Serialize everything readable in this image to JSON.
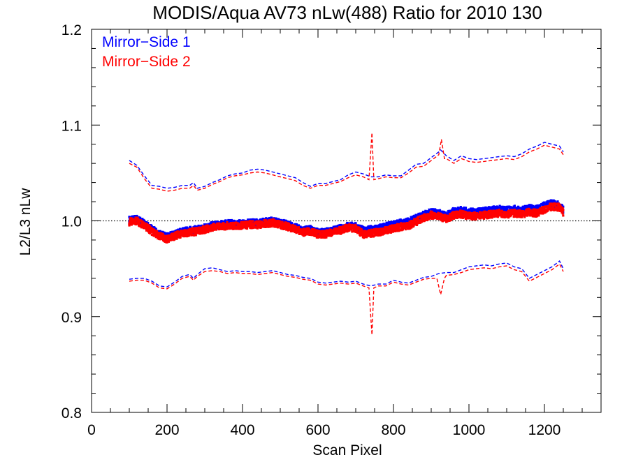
{
  "chart_data": {
    "type": "scatter",
    "title": "MODIS/Aqua AV73 nLw(488) Ratio for 2010 130",
    "xlabel": "Scan Pixel",
    "ylabel": "L2/L3 nLw",
    "xlim": [
      0,
      1350
    ],
    "ylim": [
      0.8,
      1.2
    ],
    "x_ticks": [
      0,
      200,
      400,
      600,
      800,
      1000,
      1200
    ],
    "x_tick_labels": [
      "0",
      "200",
      "400",
      "600",
      "800",
      "1000",
      "1200"
    ],
    "y_ticks": [
      0.8,
      0.9,
      1.0,
      1.1,
      1.2
    ],
    "y_tick_labels": [
      "0.8",
      "0.9",
      "1.0",
      "1.1",
      "1.2"
    ],
    "reference_line": 1.0,
    "legend_position": "top-left",
    "series": [
      {
        "name": "Mirror−Side 1",
        "color": "#0000ff",
        "mean": {
          "x": [
            100,
            120,
            140,
            160,
            180,
            200,
            220,
            240,
            260,
            280,
            300,
            320,
            340,
            360,
            380,
            400,
            420,
            440,
            460,
            480,
            500,
            520,
            540,
            560,
            580,
            600,
            620,
            640,
            660,
            680,
            700,
            720,
            740,
            760,
            780,
            800,
            820,
            840,
            860,
            880,
            900,
            920,
            940,
            960,
            980,
            1000,
            1020,
            1040,
            1060,
            1080,
            1100,
            1120,
            1140,
            1160,
            1180,
            1200,
            1220,
            1240,
            1250
          ],
          "y": [
            1.001,
            1.002,
            0.997,
            0.991,
            0.986,
            0.983,
            0.986,
            0.989,
            0.99,
            0.991,
            0.993,
            0.995,
            0.996,
            0.997,
            0.997,
            0.997,
            0.998,
            0.998,
            0.999,
            1.0,
            0.998,
            0.996,
            0.993,
            0.99,
            0.991,
            0.988,
            0.988,
            0.99,
            0.992,
            0.995,
            0.994,
            0.99,
            0.991,
            0.992,
            0.994,
            0.996,
            0.998,
            0.999,
            1.003,
            1.006,
            1.009,
            1.008,
            1.005,
            1.01,
            1.011,
            1.009,
            1.009,
            1.01,
            1.011,
            1.012,
            1.011,
            1.012,
            1.011,
            1.013,
            1.012,
            1.016,
            1.018,
            1.016,
            1.011
          ]
        },
        "upper": {
          "x": [
            100,
            120,
            140,
            160,
            180,
            200,
            220,
            240,
            260,
            270,
            280,
            300,
            320,
            340,
            360,
            380,
            400,
            420,
            440,
            460,
            480,
            500,
            520,
            540,
            560,
            580,
            600,
            620,
            640,
            660,
            680,
            700,
            720,
            740,
            760,
            780,
            800,
            820,
            840,
            860,
            880,
            900,
            920,
            925,
            940,
            960,
            980,
            1000,
            1020,
            1040,
            1060,
            1080,
            1100,
            1120,
            1140,
            1160,
            1180,
            1200,
            1220,
            1240,
            1250
          ],
          "y": [
            1.063,
            1.058,
            1.047,
            1.037,
            1.036,
            1.034,
            1.035,
            1.037,
            1.037,
            1.04,
            1.034,
            1.036,
            1.04,
            1.043,
            1.047,
            1.049,
            1.05,
            1.053,
            1.054,
            1.053,
            1.051,
            1.049,
            1.047,
            1.045,
            1.04,
            1.036,
            1.039,
            1.039,
            1.041,
            1.043,
            1.048,
            1.051,
            1.049,
            1.046,
            1.046,
            1.048,
            1.047,
            1.047,
            1.053,
            1.059,
            1.06,
            1.066,
            1.072,
            1.074,
            1.068,
            1.063,
            1.068,
            1.065,
            1.064,
            1.065,
            1.066,
            1.067,
            1.068,
            1.067,
            1.07,
            1.075,
            1.078,
            1.082,
            1.08,
            1.078,
            1.072
          ]
        },
        "lower": {
          "x": [
            100,
            120,
            140,
            160,
            180,
            200,
            220,
            240,
            260,
            270,
            280,
            300,
            320,
            340,
            360,
            380,
            400,
            420,
            440,
            460,
            480,
            500,
            520,
            540,
            560,
            580,
            600,
            620,
            640,
            660,
            680,
            700,
            720,
            740,
            760,
            780,
            800,
            820,
            840,
            860,
            880,
            900,
            920,
            940,
            960,
            980,
            1000,
            1020,
            1040,
            1060,
            1080,
            1100,
            1120,
            1140,
            1160,
            1180,
            1200,
            1220,
            1240,
            1250
          ],
          "y": [
            0.939,
            0.94,
            0.94,
            0.937,
            0.932,
            0.931,
            0.936,
            0.942,
            0.944,
            0.94,
            0.944,
            0.95,
            0.951,
            0.949,
            0.947,
            0.948,
            0.947,
            0.947,
            0.946,
            0.947,
            0.948,
            0.946,
            0.944,
            0.943,
            0.941,
            0.94,
            0.936,
            0.935,
            0.936,
            0.937,
            0.936,
            0.937,
            0.934,
            0.932,
            0.934,
            0.934,
            0.938,
            0.936,
            0.935,
            0.938,
            0.941,
            0.942,
            0.945,
            0.946,
            0.946,
            0.949,
            0.952,
            0.953,
            0.954,
            0.953,
            0.955,
            0.956,
            0.952,
            0.95,
            0.94,
            0.944,
            0.948,
            0.952,
            0.958,
            0.95
          ]
        }
      },
      {
        "name": "Mirror−Side 2",
        "color": "#ff0000",
        "mean": {
          "x": [
            100,
            120,
            140,
            160,
            180,
            200,
            220,
            240,
            260,
            280,
            300,
            320,
            340,
            360,
            380,
            400,
            420,
            440,
            460,
            480,
            500,
            520,
            540,
            560,
            580,
            600,
            620,
            640,
            660,
            680,
            700,
            720,
            740,
            760,
            780,
            800,
            820,
            840,
            860,
            880,
            900,
            920,
            940,
            960,
            980,
            1000,
            1020,
            1040,
            1060,
            1080,
            1100,
            1120,
            1140,
            1160,
            1180,
            1200,
            1220,
            1240,
            1250
          ],
          "y": [
            0.999,
            1.0,
            0.995,
            0.989,
            0.984,
            0.981,
            0.984,
            0.987,
            0.988,
            0.989,
            0.991,
            0.993,
            0.994,
            0.995,
            0.995,
            0.995,
            0.996,
            0.996,
            0.997,
            0.998,
            0.996,
            0.994,
            0.991,
            0.988,
            0.989,
            0.986,
            0.986,
            0.988,
            0.99,
            0.993,
            0.992,
            0.986,
            0.987,
            0.988,
            0.99,
            0.992,
            0.994,
            0.995,
            0.999,
            1.003,
            1.006,
            1.005,
            1.002,
            1.006,
            1.007,
            1.005,
            1.005,
            1.006,
            1.007,
            1.008,
            1.007,
            1.008,
            1.007,
            1.009,
            1.008,
            1.012,
            1.015,
            1.014,
            1.009
          ]
        },
        "upper": {
          "x": [
            100,
            120,
            140,
            160,
            180,
            200,
            220,
            240,
            260,
            270,
            280,
            300,
            320,
            340,
            360,
            380,
            400,
            420,
            440,
            460,
            480,
            500,
            520,
            540,
            560,
            580,
            600,
            620,
            640,
            660,
            680,
            700,
            720,
            735,
            743,
            748,
            760,
            780,
            800,
            820,
            840,
            860,
            880,
            900,
            920,
            927,
            935,
            940,
            960,
            980,
            1000,
            1020,
            1040,
            1060,
            1080,
            1100,
            1120,
            1140,
            1160,
            1180,
            1200,
            1220,
            1240,
            1250
          ],
          "y": [
            1.06,
            1.056,
            1.044,
            1.034,
            1.033,
            1.031,
            1.032,
            1.034,
            1.034,
            1.037,
            1.032,
            1.034,
            1.038,
            1.041,
            1.045,
            1.047,
            1.048,
            1.05,
            1.051,
            1.05,
            1.048,
            1.046,
            1.044,
            1.042,
            1.037,
            1.034,
            1.037,
            1.037,
            1.039,
            1.041,
            1.045,
            1.048,
            1.046,
            1.043,
            1.092,
            1.043,
            1.044,
            1.046,
            1.045,
            1.045,
            1.05,
            1.056,
            1.057,
            1.063,
            1.069,
            1.085,
            1.065,
            1.065,
            1.06,
            1.065,
            1.062,
            1.061,
            1.062,
            1.063,
            1.064,
            1.065,
            1.064,
            1.067,
            1.072,
            1.075,
            1.079,
            1.077,
            1.075,
            1.069
          ]
        },
        "lower": {
          "x": [
            100,
            120,
            140,
            160,
            180,
            200,
            220,
            240,
            260,
            270,
            280,
            300,
            320,
            340,
            360,
            380,
            400,
            420,
            440,
            460,
            480,
            500,
            520,
            540,
            560,
            580,
            600,
            620,
            640,
            660,
            680,
            700,
            720,
            735,
            743,
            748,
            760,
            780,
            800,
            820,
            840,
            860,
            880,
            900,
            915,
            925,
            935,
            940,
            960,
            980,
            1000,
            1020,
            1040,
            1060,
            1080,
            1100,
            1120,
            1140,
            1160,
            1180,
            1200,
            1220,
            1240,
            1250
          ],
          "y": [
            0.937,
            0.938,
            0.938,
            0.935,
            0.93,
            0.929,
            0.934,
            0.94,
            0.942,
            0.938,
            0.942,
            0.947,
            0.948,
            0.947,
            0.945,
            0.946,
            0.945,
            0.945,
            0.944,
            0.945,
            0.946,
            0.944,
            0.942,
            0.941,
            0.939,
            0.938,
            0.934,
            0.933,
            0.934,
            0.935,
            0.934,
            0.935,
            0.932,
            0.93,
            0.881,
            0.93,
            0.932,
            0.932,
            0.936,
            0.934,
            0.933,
            0.936,
            0.939,
            0.94,
            0.94,
            0.923,
            0.94,
            0.943,
            0.944,
            0.946,
            0.949,
            0.95,
            0.951,
            0.95,
            0.952,
            0.953,
            0.949,
            0.947,
            0.937,
            0.941,
            0.945,
            0.949,
            0.955,
            0.947
          ]
        }
      }
    ]
  }
}
